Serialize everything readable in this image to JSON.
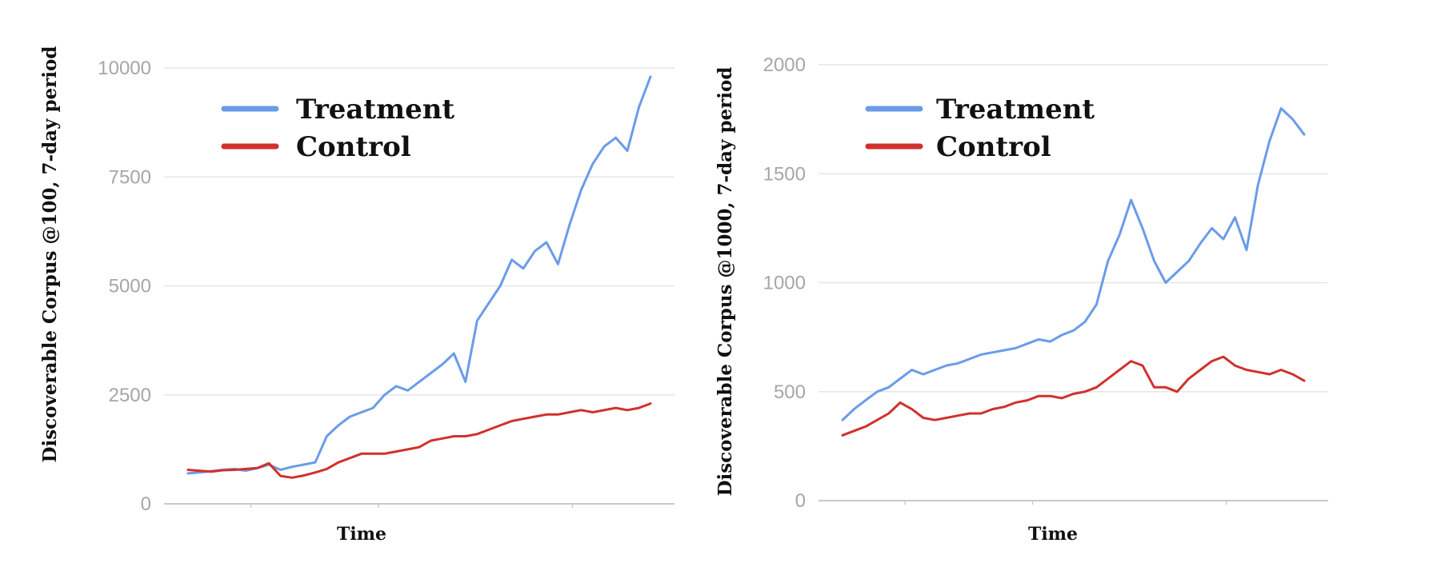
{
  "colors": {
    "treatment": "#6a9ce8",
    "control": "#d0312d",
    "grid": "#e6e6e6",
    "axis": "#c9c9c9",
    "tick": "#a6a6a6"
  },
  "chart_data": [
    {
      "type": "line",
      "title": "",
      "xlabel": "Time",
      "ylabel": "Discoverable Corpus @100, 7-day period",
      "ylim": [
        0,
        10000
      ],
      "yticks": [
        "0",
        "2500",
        "5000",
        "7500",
        "10000"
      ],
      "grid": true,
      "legend_placement": "top-left",
      "x": [
        0,
        5,
        10,
        15,
        20,
        25,
        30,
        35,
        40,
        45,
        50,
        55,
        60,
        65,
        70,
        75,
        80,
        85,
        90,
        95,
        100,
        105,
        110,
        115,
        120,
        125,
        130,
        135,
        140,
        145,
        150,
        155,
        160,
        165,
        170,
        175,
        180,
        185,
        190,
        195,
        200
      ],
      "series": [
        {
          "name": "Treatment",
          "values": [
            700,
            720,
            750,
            780,
            800,
            760,
            820,
            900,
            780,
            850,
            900,
            950,
            1550,
            1800,
            2000,
            2100,
            2200,
            2500,
            2700,
            2600,
            2800,
            3000,
            3200,
            3450,
            2800,
            4200,
            4600,
            5000,
            5600,
            5400,
            5800,
            6000,
            5500,
            6400,
            7200,
            7800,
            8200,
            8400,
            8100,
            9100,
            9800
          ]
        },
        {
          "name": "Control",
          "values": [
            780,
            760,
            740,
            770,
            780,
            800,
            820,
            930,
            640,
            600,
            650,
            720,
            800,
            950,
            1050,
            1150,
            1150,
            1150,
            1200,
            1250,
            1300,
            1450,
            1500,
            1550,
            1550,
            1600,
            1700,
            1800,
            1900,
            1950,
            2000,
            2050,
            2050,
            2100,
            2150,
            2100,
            2150,
            2200,
            2150,
            2200,
            2300
          ]
        }
      ]
    },
    {
      "type": "line",
      "title": "",
      "xlabel": "Time",
      "ylabel": "Discoverable Corpus @1000, 7-day period",
      "ylim": [
        0,
        2000
      ],
      "yticks": [
        "0",
        "500",
        "1000",
        "1500",
        "2000"
      ],
      "grid": true,
      "legend_placement": "top-left",
      "x": [
        0,
        5,
        10,
        15,
        20,
        25,
        30,
        35,
        40,
        45,
        50,
        55,
        60,
        65,
        70,
        75,
        80,
        85,
        90,
        95,
        100,
        105,
        110,
        115,
        120,
        125,
        130,
        135,
        140,
        145,
        150,
        155,
        160,
        165,
        170,
        175,
        180,
        185,
        190,
        195,
        200
      ],
      "series": [
        {
          "name": "Treatment",
          "values": [
            370,
            420,
            460,
            500,
            520,
            560,
            600,
            580,
            600,
            620,
            630,
            650,
            670,
            680,
            690,
            700,
            720,
            740,
            730,
            760,
            780,
            820,
            900,
            1100,
            1220,
            1380,
            1250,
            1100,
            1000,
            1050,
            1100,
            1180,
            1250,
            1200,
            1300,
            1150,
            1450,
            1650,
            1800,
            1750,
            1680
          ]
        },
        {
          "name": "Control",
          "values": [
            300,
            320,
            340,
            370,
            400,
            450,
            420,
            380,
            370,
            380,
            390,
            400,
            400,
            420,
            430,
            450,
            460,
            480,
            480,
            470,
            490,
            500,
            520,
            560,
            600,
            640,
            620,
            520,
            520,
            500,
            560,
            600,
            640,
            660,
            620,
            600,
            590,
            580,
            600,
            580,
            550
          ]
        }
      ]
    }
  ]
}
